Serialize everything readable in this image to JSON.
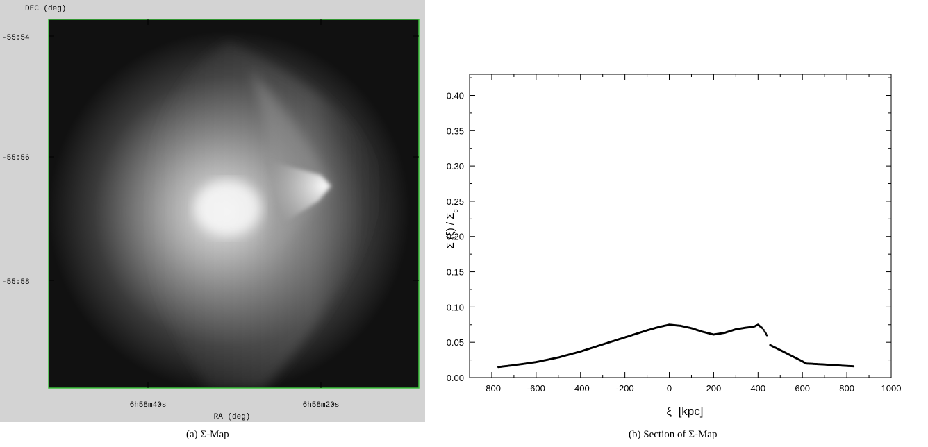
{
  "chart_data": [
    {
      "type": "heatmap",
      "xlabel": "RA (deg)",
      "ylabel": "DEC (deg)",
      "x_ticks": [
        "6h58m40s",
        "6h58m20s"
      ],
      "y_ticks": [
        "-55:54",
        "-55:56",
        "-55:58"
      ],
      "caption": "(a)  Σ-Map",
      "colors": {
        "panel": "#d3d3d3",
        "frame": "#3dc23d",
        "image_bg": "#0d0d0d"
      }
    },
    {
      "type": "scatter",
      "xlabel": "ξ  [kpc]",
      "ylabel_main": "Σ (ξ) / Σ",
      "ylabel_sub": "c",
      "xlim": [
        -900,
        1000
      ],
      "ylim": [
        0.0,
        0.43
      ],
      "x_ticks": [
        -800,
        -600,
        -400,
        -200,
        0,
        200,
        400,
        600,
        800,
        1000
      ],
      "y_ticks": [
        0.0,
        0.05,
        0.1,
        0.15,
        0.2,
        0.25,
        0.3,
        0.35,
        0.4
      ],
      "caption": "(b)  Section of Σ-Map",
      "series": [
        {
          "values": [
            [
              -770,
              0.015
            ],
            [
              -700,
              0.0175
            ],
            [
              -600,
              0.022
            ],
            [
              -500,
              0.0285
            ],
            [
              -400,
              0.037
            ],
            [
              -300,
              0.047
            ],
            [
              -200,
              0.057
            ],
            [
              -100,
              0.067
            ],
            [
              -50,
              0.0715
            ],
            [
              0,
              0.075
            ],
            [
              50,
              0.0735
            ],
            [
              100,
              0.07
            ],
            [
              150,
              0.065
            ],
            [
              200,
              0.061
            ],
            [
              250,
              0.0635
            ],
            [
              300,
              0.0685
            ],
            [
              350,
              0.071
            ],
            [
              380,
              0.072
            ],
            [
              400,
              0.075
            ],
            [
              420,
              0.07
            ],
            [
              440,
              0.06
            ],
            [
              455,
              0.046
            ],
            [
              500,
              0.039
            ],
            [
              550,
              0.031
            ],
            [
              600,
              0.023
            ],
            [
              615,
              0.02
            ],
            [
              700,
              0.0185
            ],
            [
              800,
              0.0165
            ],
            [
              830,
              0.016
            ]
          ]
        }
      ]
    }
  ]
}
